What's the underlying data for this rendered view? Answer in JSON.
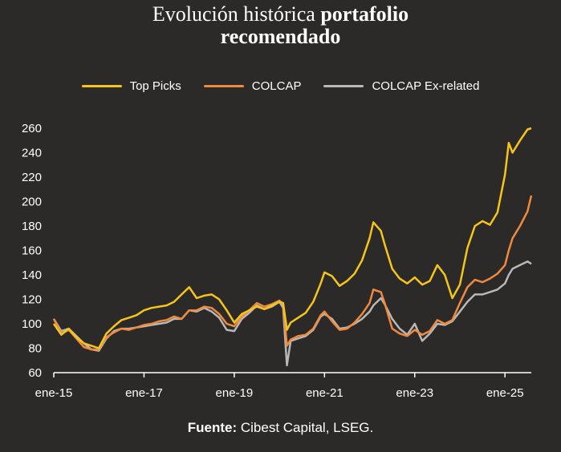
{
  "title_light": "Evolución histórica",
  "title_bold_1": "portafolio",
  "title_bold_2": "recomendado",
  "footer_label": "Fuente:",
  "footer_text": "Cibest Capital, LSEG.",
  "chart_data": {
    "type": "line",
    "xlabel": "",
    "ylabel": "",
    "ylim": [
      60,
      260
    ],
    "yticks": [
      60,
      80,
      100,
      120,
      140,
      160,
      180,
      200,
      220,
      240,
      260
    ],
    "xlim": [
      "2015-01",
      "2025-08"
    ],
    "xticks": [
      "ene-15",
      "ene-17",
      "ene-19",
      "ene-21",
      "ene-23",
      "ene-25"
    ],
    "grid": false,
    "legend_position": "top",
    "series": [
      {
        "name": "Top Picks",
        "color": "#f5c518",
        "points": [
          [
            "2015-01",
            100
          ],
          [
            "2015-03",
            91
          ],
          [
            "2015-05",
            96
          ],
          [
            "2015-07",
            89
          ],
          [
            "2015-09",
            84
          ],
          [
            "2015-11",
            82
          ],
          [
            "2016-01",
            80
          ],
          [
            "2016-03",
            92
          ],
          [
            "2016-05",
            98
          ],
          [
            "2016-07",
            103
          ],
          [
            "2016-09",
            105
          ],
          [
            "2016-11",
            107
          ],
          [
            "2017-01",
            111
          ],
          [
            "2017-03",
            113
          ],
          [
            "2017-05",
            114
          ],
          [
            "2017-07",
            115
          ],
          [
            "2017-09",
            118
          ],
          [
            "2017-11",
            124
          ],
          [
            "2018-01",
            130
          ],
          [
            "2018-03",
            121
          ],
          [
            "2018-05",
            123
          ],
          [
            "2018-07",
            124
          ],
          [
            "2018-09",
            120
          ],
          [
            "2018-11",
            111
          ],
          [
            "2019-01",
            101
          ],
          [
            "2019-03",
            108
          ],
          [
            "2019-05",
            111
          ],
          [
            "2019-07",
            114
          ],
          [
            "2019-09",
            112
          ],
          [
            "2019-11",
            115
          ],
          [
            "2020-01",
            118
          ],
          [
            "2020-02",
            117
          ],
          [
            "2020-03",
            95
          ],
          [
            "2020-04",
            101
          ],
          [
            "2020-06",
            105
          ],
          [
            "2020-08",
            109
          ],
          [
            "2020-10",
            118
          ],
          [
            "2020-12",
            133
          ],
          [
            "2021-01",
            142
          ],
          [
            "2021-03",
            139
          ],
          [
            "2021-05",
            131
          ],
          [
            "2021-07",
            135
          ],
          [
            "2021-09",
            141
          ],
          [
            "2021-11",
            152
          ],
          [
            "2022-01",
            170
          ],
          [
            "2022-02",
            183
          ],
          [
            "2022-04",
            176
          ],
          [
            "2022-05",
            165
          ],
          [
            "2022-07",
            145
          ],
          [
            "2022-09",
            137
          ],
          [
            "2022-11",
            133
          ],
          [
            "2023-01",
            138
          ],
          [
            "2023-03",
            132
          ],
          [
            "2023-05",
            135
          ],
          [
            "2023-07",
            148
          ],
          [
            "2023-09",
            140
          ],
          [
            "2023-11",
            121
          ],
          [
            "2024-01",
            132
          ],
          [
            "2024-03",
            162
          ],
          [
            "2024-05",
            180
          ],
          [
            "2024-07",
            184
          ],
          [
            "2024-09",
            181
          ],
          [
            "2024-11",
            191
          ],
          [
            "2025-01",
            222
          ],
          [
            "2025-02",
            248
          ],
          [
            "2025-03",
            240
          ],
          [
            "2025-05",
            250
          ],
          [
            "2025-07",
            259
          ],
          [
            "2025-08",
            260
          ]
        ]
      },
      {
        "name": "COLCAP",
        "color": "#f08a3c",
        "points": [
          [
            "2015-01",
            104
          ],
          [
            "2015-03",
            92
          ],
          [
            "2015-05",
            95
          ],
          [
            "2015-07",
            88
          ],
          [
            "2015-09",
            81
          ],
          [
            "2015-11",
            79
          ],
          [
            "2016-01",
            79
          ],
          [
            "2016-03",
            89
          ],
          [
            "2016-05",
            93
          ],
          [
            "2016-07",
            96
          ],
          [
            "2016-09",
            95
          ],
          [
            "2016-11",
            97
          ],
          [
            "2017-01",
            99
          ],
          [
            "2017-03",
            100
          ],
          [
            "2017-05",
            102
          ],
          [
            "2017-07",
            103
          ],
          [
            "2017-09",
            106
          ],
          [
            "2017-11",
            104
          ],
          [
            "2018-01",
            111
          ],
          [
            "2018-03",
            111
          ],
          [
            "2018-05",
            114
          ],
          [
            "2018-07",
            113
          ],
          [
            "2018-09",
            108
          ],
          [
            "2018-11",
            100
          ],
          [
            "2019-01",
            98
          ],
          [
            "2019-03",
            106
          ],
          [
            "2019-05",
            111
          ],
          [
            "2019-07",
            117
          ],
          [
            "2019-09",
            114
          ],
          [
            "2019-11",
            116
          ],
          [
            "2020-01",
            119
          ],
          [
            "2020-02",
            116
          ],
          [
            "2020-03",
            82
          ],
          [
            "2020-04",
            87
          ],
          [
            "2020-06",
            90
          ],
          [
            "2020-08",
            91
          ],
          [
            "2020-10",
            96
          ],
          [
            "2020-12",
            107
          ],
          [
            "2021-01",
            110
          ],
          [
            "2021-03",
            102
          ],
          [
            "2021-05",
            95
          ],
          [
            "2021-07",
            96
          ],
          [
            "2021-09",
            101
          ],
          [
            "2021-11",
            108
          ],
          [
            "2022-01",
            117
          ],
          [
            "2022-02",
            128
          ],
          [
            "2022-04",
            126
          ],
          [
            "2022-05",
            117
          ],
          [
            "2022-07",
            96
          ],
          [
            "2022-09",
            92
          ],
          [
            "2022-11",
            90
          ],
          [
            "2023-01",
            95
          ],
          [
            "2023-03",
            91
          ],
          [
            "2023-05",
            94
          ],
          [
            "2023-07",
            103
          ],
          [
            "2023-09",
            100
          ],
          [
            "2023-11",
            103
          ],
          [
            "2024-01",
            117
          ],
          [
            "2024-03",
            130
          ],
          [
            "2024-05",
            136
          ],
          [
            "2024-07",
            134
          ],
          [
            "2024-09",
            137
          ],
          [
            "2024-11",
            141
          ],
          [
            "2025-01",
            148
          ],
          [
            "2025-02",
            160
          ],
          [
            "2025-03",
            170
          ],
          [
            "2025-05",
            180
          ],
          [
            "2025-07",
            192
          ],
          [
            "2025-08",
            205
          ]
        ]
      },
      {
        "name": "COLCAP Ex-related",
        "color": "#b8b8b8",
        "points": [
          [
            "2015-01",
            104
          ],
          [
            "2015-03",
            94
          ],
          [
            "2015-05",
            96
          ],
          [
            "2015-07",
            90
          ],
          [
            "2015-09",
            84
          ],
          [
            "2015-11",
            79
          ],
          [
            "2016-01",
            78
          ],
          [
            "2016-03",
            88
          ],
          [
            "2016-05",
            94
          ],
          [
            "2016-07",
            96
          ],
          [
            "2016-09",
            96
          ],
          [
            "2016-11",
            97
          ],
          [
            "2017-01",
            98
          ],
          [
            "2017-03",
            99
          ],
          [
            "2017-05",
            100
          ],
          [
            "2017-07",
            101
          ],
          [
            "2017-09",
            104
          ],
          [
            "2017-11",
            104
          ],
          [
            "2018-01",
            111
          ],
          [
            "2018-03",
            110
          ],
          [
            "2018-05",
            113
          ],
          [
            "2018-07",
            110
          ],
          [
            "2018-09",
            105
          ],
          [
            "2018-11",
            95
          ],
          [
            "2019-01",
            94
          ],
          [
            "2019-03",
            104
          ],
          [
            "2019-05",
            109
          ],
          [
            "2019-07",
            115
          ],
          [
            "2019-09",
            112
          ],
          [
            "2019-11",
            114
          ],
          [
            "2020-01",
            118
          ],
          [
            "2020-02",
            113
          ],
          [
            "2020-03",
            66
          ],
          [
            "2020-04",
            86
          ],
          [
            "2020-06",
            88
          ],
          [
            "2020-08",
            90
          ],
          [
            "2020-10",
            95
          ],
          [
            "2020-12",
            106
          ],
          [
            "2021-01",
            108
          ],
          [
            "2021-03",
            104
          ],
          [
            "2021-05",
            96
          ],
          [
            "2021-07",
            97
          ],
          [
            "2021-09",
            100
          ],
          [
            "2021-11",
            104
          ],
          [
            "2022-01",
            110
          ],
          [
            "2022-02",
            115
          ],
          [
            "2022-04",
            121
          ],
          [
            "2022-05",
            116
          ],
          [
            "2022-07",
            104
          ],
          [
            "2022-09",
            96
          ],
          [
            "2022-11",
            91
          ],
          [
            "2023-01",
            100
          ],
          [
            "2023-03",
            86
          ],
          [
            "2023-05",
            92
          ],
          [
            "2023-07",
            100
          ],
          [
            "2023-09",
            99
          ],
          [
            "2023-11",
            102
          ],
          [
            "2024-01",
            110
          ],
          [
            "2024-03",
            118
          ],
          [
            "2024-05",
            124
          ],
          [
            "2024-07",
            124
          ],
          [
            "2024-09",
            126
          ],
          [
            "2024-11",
            128
          ],
          [
            "2025-01",
            133
          ],
          [
            "2025-02",
            140
          ],
          [
            "2025-03",
            145
          ],
          [
            "2025-05",
            148
          ],
          [
            "2025-07",
            151
          ],
          [
            "2025-08",
            149
          ]
        ]
      }
    ]
  }
}
